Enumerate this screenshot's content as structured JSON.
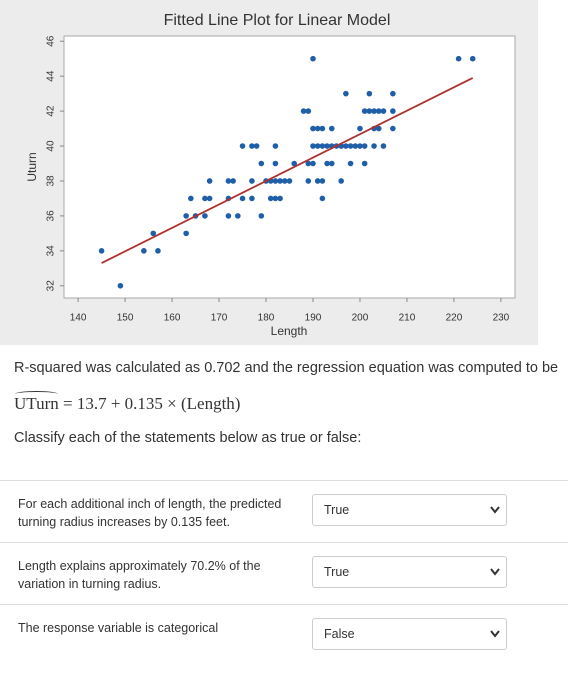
{
  "chart_data": {
    "type": "scatter",
    "title": "Fitted Line Plot for Linear Model",
    "x_label": "Length",
    "y_label": "Uturn",
    "series": [
      {
        "color": "#1f5fa8",
        "x": [
          190,
          221,
          224,
          197,
          202,
          207,
          188,
          189,
          201,
          202,
          203,
          204,
          205,
          207,
          190,
          191,
          192,
          194,
          200,
          203,
          204,
          207,
          175,
          177,
          178,
          182,
          190,
          191,
          192,
          193,
          194,
          195,
          196,
          197,
          198,
          199,
          200,
          201,
          203,
          205,
          179,
          182,
          186,
          189,
          190,
          193,
          194,
          198,
          201,
          168,
          172,
          173,
          177,
          180,
          181,
          182,
          183,
          184,
          185,
          189,
          191,
          192,
          196,
          164,
          167,
          168,
          172,
          175,
          177,
          181,
          182,
          183,
          192,
          163,
          165,
          167,
          172,
          174,
          179,
          156,
          163,
          145,
          154,
          157,
          149
        ],
        "values": [
          45,
          45,
          45,
          43,
          43,
          43,
          42,
          42,
          42,
          42,
          42,
          42,
          42,
          42,
          41,
          41,
          41,
          41,
          41,
          41,
          41,
          41,
          40,
          40,
          40,
          40,
          40,
          40,
          40,
          40,
          40,
          40,
          40,
          40,
          40,
          40,
          40,
          40,
          40,
          40,
          39,
          39,
          39,
          39,
          39,
          39,
          39,
          39,
          39,
          38,
          38,
          38,
          38,
          38,
          38,
          38,
          38,
          38,
          38,
          38,
          38,
          38,
          38,
          37,
          37,
          37,
          37,
          37,
          37,
          37,
          37,
          37,
          37,
          36,
          36,
          36,
          36,
          36,
          36,
          35,
          35,
          34,
          34,
          34,
          32
        ]
      },
      {
        "color": "#b03030",
        "x": [
          145,
          224
        ],
        "values": [
          33.3,
          43.9
        ]
      }
    ],
    "xlim": [
      137,
      233
    ],
    "ylim": [
      31.3,
      46.3
    ],
    "xticks": [
      140,
      150,
      160,
      170,
      180,
      190,
      200,
      210,
      220,
      230
    ],
    "yticks": [
      32,
      34,
      36,
      38,
      40,
      42,
      44,
      46
    ]
  },
  "text": {
    "intro": "R-squared was calculated as 0.702 and the regression equation was computed to be",
    "equation_lhs": "UTurn",
    "equation_rhs": "= 13.7 + 0.135 × (Length)",
    "instruction": "Classify each of the statements below as true or false:"
  },
  "questions": [
    {
      "statement": "For each additional inch of length, the predicted turning radius increases by 0.135 feet.",
      "answer": "True"
    },
    {
      "statement": "Length explains approximately 70.2% of the variation in turning radius.",
      "answer": "True"
    },
    {
      "statement": "The response variable is categorical",
      "answer": "False"
    }
  ]
}
